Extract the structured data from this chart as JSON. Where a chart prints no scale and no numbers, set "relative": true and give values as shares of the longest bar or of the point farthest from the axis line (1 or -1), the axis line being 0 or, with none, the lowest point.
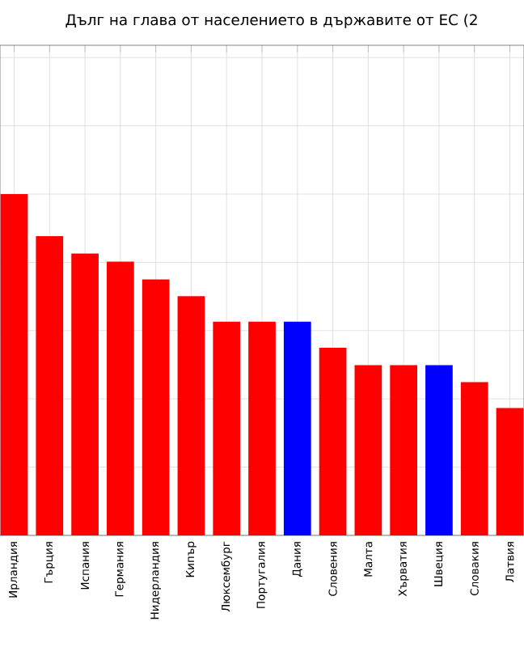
{
  "chart_data": {
    "type": "bar",
    "title": "Дълг на глава от населението в държавите от ЕС (2",
    "categories": [
      "Ирландия",
      "Гърция",
      "Испания",
      "Германия",
      "Нидерландия",
      "Кипър",
      "Люксембург",
      "Португалия",
      "Дания",
      "Словения",
      "Малта",
      "Хърватия",
      "Швеция",
      "Словакия",
      "Латвия"
    ],
    "values": [
      1,
      0.877,
      0.826,
      0.802,
      0.75,
      0.701,
      0.626,
      0.626,
      0.626,
      0.55,
      0.499,
      0.499,
      0.499,
      0.449,
      0.373
    ],
    "colors": [
      "#ff0000",
      "#ff0000",
      "#ff0000",
      "#ff0000",
      "#ff0000",
      "#ff0000",
      "#ff0000",
      "#ff0000",
      "#0000ff",
      "#ff0000",
      "#ff0000",
      "#ff0000",
      "#0000ff",
      "#ff0000",
      "#ff0000"
    ],
    "relative": true,
    "grid": true
  }
}
